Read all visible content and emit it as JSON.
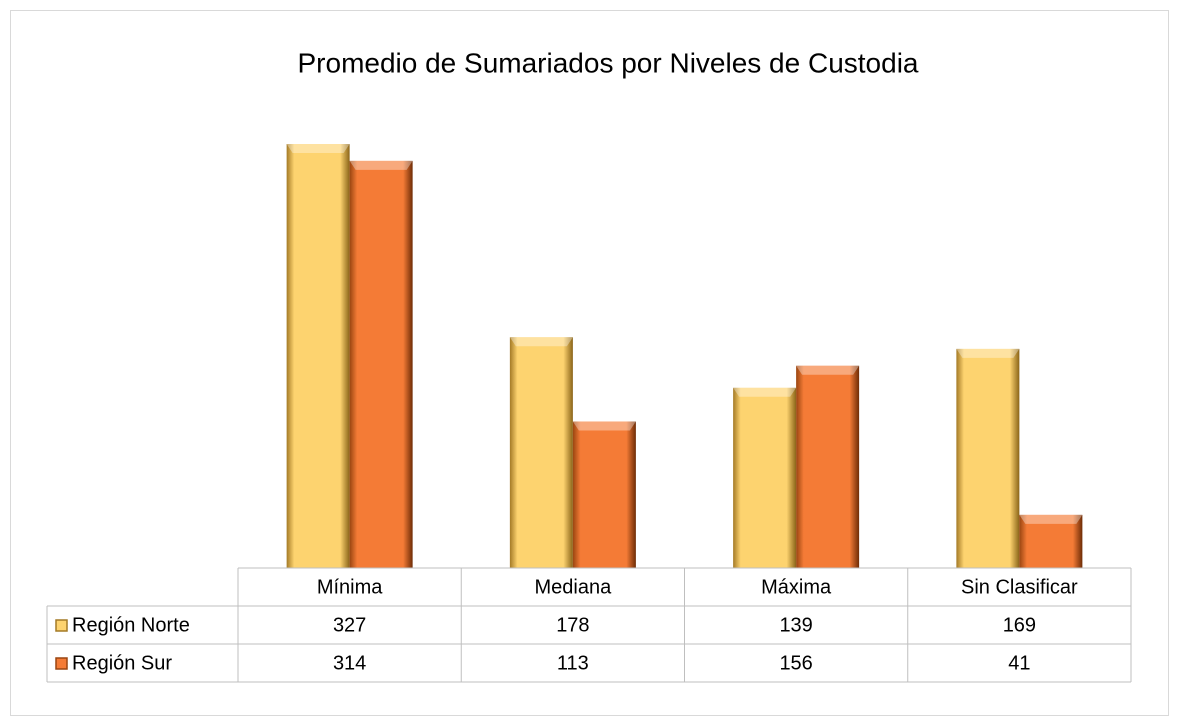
{
  "chart_data": {
    "type": "bar",
    "title": "Promedio de Sumariados por Niveles de Custodia",
    "categories": [
      "Mínima",
      "Mediana",
      "Máxima",
      "Sin Clasificar"
    ],
    "series": [
      {
        "name": "Región Norte",
        "color": "#fdd36f",
        "values": [
          327,
          178,
          139,
          169
        ]
      },
      {
        "name": "Región Sur",
        "color": "#f47b36",
        "values": [
          314,
          113,
          156,
          41
        ]
      }
    ],
    "data_table": true
  }
}
